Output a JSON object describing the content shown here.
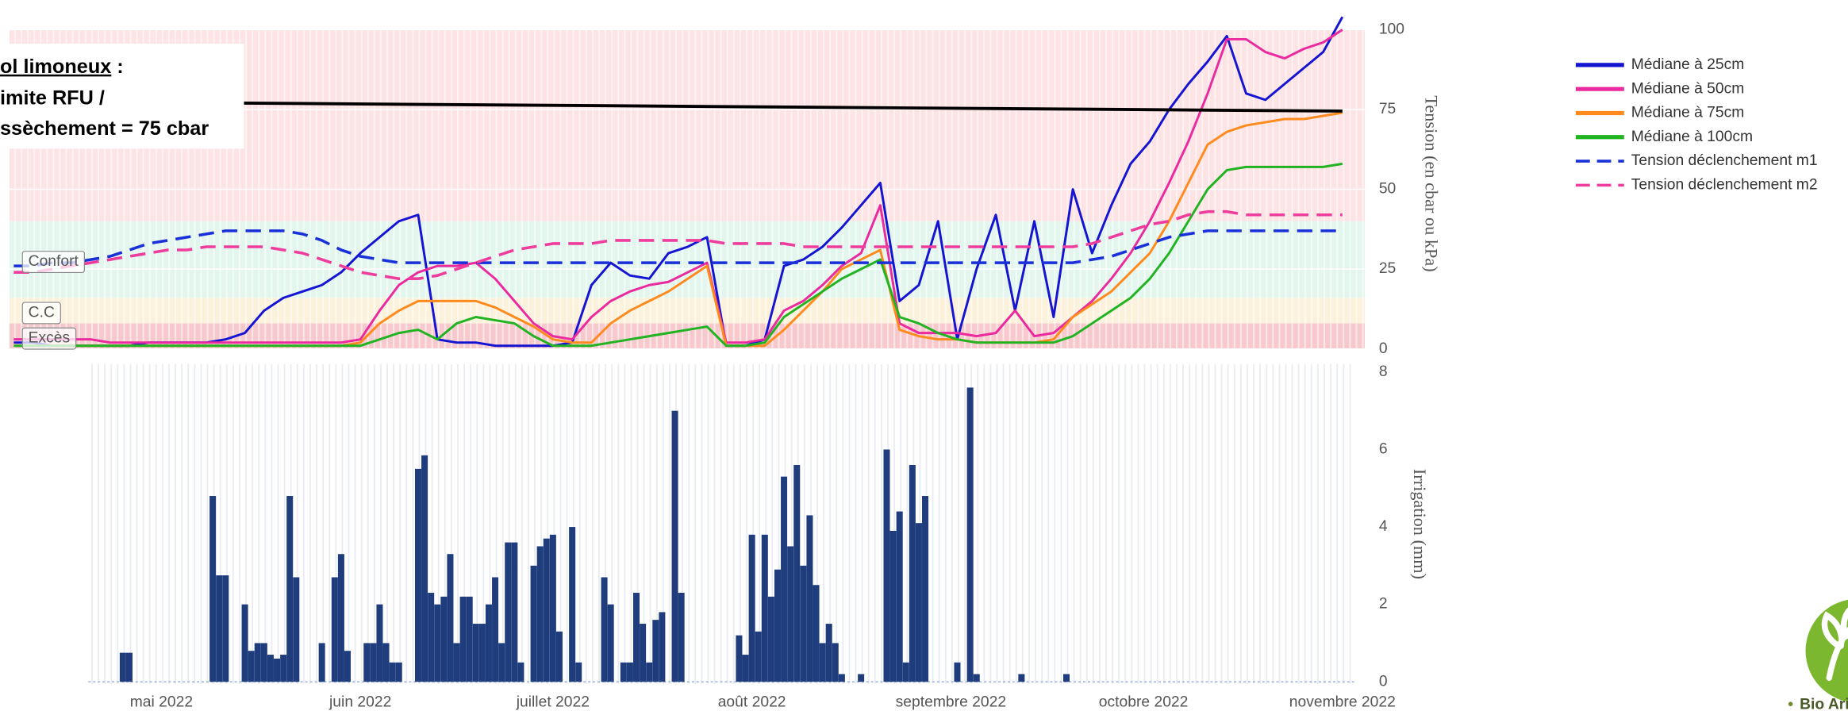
{
  "chart_data": [
    {
      "type": "line",
      "categories": [
        null,
        null,
        null,
        null,
        null,
        null,
        null,
        null,
        null,
        null,
        null,
        null,
        null,
        null,
        null,
        null,
        null,
        null,
        null,
        null,
        null,
        null,
        null,
        null,
        null,
        null,
        null,
        null,
        null,
        null,
        null,
        null,
        null,
        null,
        null,
        null,
        null,
        null,
        null,
        null,
        null,
        null,
        null,
        null,
        null,
        null,
        null,
        null,
        null,
        null,
        null,
        null,
        null,
        null,
        null,
        null,
        null,
        null,
        null,
        null,
        null,
        null,
        null,
        null,
        null,
        null,
        null,
        null,
        null,
        null
      ],
      "y_label": "Tension (en cbar ou kPa)",
      "ylim": [
        -1.5,
        105
      ],
      "yticks": [
        0,
        25,
        50,
        75,
        100
      ],
      "grid": true,
      "bands": [
        {
          "name": "Excès",
          "range": [
            0,
            8
          ],
          "color": "#f7c9cd"
        },
        {
          "name": "C.C",
          "range": [
            8,
            16
          ],
          "color": "#fcf2dc"
        },
        {
          "name": "Confort",
          "range": [
            16,
            40
          ],
          "color": "#e3f6ee"
        },
        {
          "range": [
            40,
            100
          ],
          "color": "#fde3e4"
        }
      ],
      "threshold": {
        "values": [
          77,
          74.5
        ],
        "color": "#000000"
      },
      "series": [
        {
          "name": "Médiane à 25cm",
          "color": "#1414d2",
          "values": [
            2,
            2,
            1,
            1,
            1,
            1,
            1,
            2,
            2,
            2,
            2,
            3,
            5,
            12,
            16,
            18,
            20,
            24,
            30,
            35,
            40,
            42,
            3,
            2,
            2,
            1,
            1,
            1,
            1,
            2,
            20,
            27,
            23,
            22,
            30,
            32,
            35,
            1,
            1,
            3,
            26,
            28,
            32,
            38,
            45,
            52,
            15,
            20,
            40,
            3,
            25,
            42,
            12,
            40,
            10,
            50,
            30,
            45,
            58,
            65,
            75,
            83,
            90,
            98,
            80,
            78,
            83,
            88,
            93,
            104
          ]
        },
        {
          "name": "Médiane à 50cm",
          "color": "#ea2a9e",
          "values": [
            3,
            3,
            3,
            3,
            3,
            2,
            2,
            2,
            2,
            2,
            2,
            2,
            2,
            2,
            2,
            2,
            2,
            2,
            3,
            12,
            20,
            24,
            26,
            26,
            27,
            22,
            15,
            8,
            4,
            3,
            10,
            15,
            18,
            20,
            21,
            24,
            27,
            2,
            2,
            3,
            12,
            15,
            20,
            26,
            30,
            45,
            8,
            5,
            5,
            5,
            4,
            5,
            12,
            4,
            5,
            10,
            15,
            22,
            30,
            40,
            52,
            65,
            80,
            97,
            97,
            93,
            91,
            94,
            96,
            100
          ]
        },
        {
          "name": "Médiane à 75cm",
          "color": "#ff8a1e",
          "values": [
            1,
            1,
            1,
            1,
            1,
            1,
            1,
            1,
            1,
            1,
            1,
            1,
            1,
            1,
            1,
            1,
            1,
            1,
            2,
            8,
            12,
            15,
            15,
            15,
            15,
            13,
            10,
            7,
            3,
            2,
            2,
            8,
            12,
            15,
            18,
            22,
            26,
            1,
            1,
            1,
            6,
            12,
            18,
            25,
            28,
            31,
            6,
            4,
            3,
            3,
            2,
            2,
            2,
            2,
            3,
            10,
            14,
            18,
            24,
            30,
            40,
            52,
            64,
            68,
            70,
            71,
            72,
            72,
            73,
            74
          ]
        },
        {
          "name": "Médiane à 100cm",
          "color": "#21b321",
          "values": [
            1,
            1,
            1,
            1,
            1,
            1,
            1,
            1,
            1,
            1,
            1,
            1,
            1,
            1,
            1,
            1,
            1,
            1,
            1,
            3,
            5,
            6,
            3,
            8,
            10,
            9,
            8,
            4,
            1,
            1,
            1,
            2,
            3,
            4,
            5,
            6,
            7,
            1,
            1,
            2,
            10,
            14,
            18,
            22,
            25,
            28,
            10,
            8,
            5,
            3,
            2,
            2,
            2,
            2,
            2,
            4,
            8,
            12,
            16,
            22,
            30,
            40,
            50,
            56,
            57,
            57,
            57,
            57,
            57,
            58
          ]
        },
        {
          "name": "Tension déclenchement m1",
          "color": "#1a30d8",
          "dash": true,
          "values": [
            26,
            26,
            27,
            27,
            28,
            29,
            31,
            33,
            34,
            35,
            36,
            37,
            37,
            37,
            37,
            36,
            34,
            31,
            29,
            28,
            27,
            27,
            27,
            27,
            27,
            27,
            27,
            27,
            27,
            27,
            27,
            27,
            27,
            27,
            27,
            27,
            27,
            27,
            27,
            27,
            27,
            27,
            27,
            27,
            27,
            27,
            27,
            27,
            27,
            27,
            27,
            27,
            27,
            27,
            27,
            27,
            28,
            29,
            31,
            33,
            35,
            36,
            37,
            37,
            37,
            37,
            37,
            37,
            37,
            37
          ]
        },
        {
          "name": "Tension déclenchement m2",
          "color": "#ee3d9d",
          "dash": true,
          "values": [
            24,
            24,
            25,
            26,
            27,
            28,
            29,
            30,
            31,
            31,
            32,
            32,
            32,
            32,
            31,
            30,
            28,
            26,
            24,
            23,
            22,
            22,
            23,
            25,
            27,
            29,
            31,
            32,
            33,
            33,
            33,
            34,
            34,
            34,
            34,
            34,
            34,
            33,
            33,
            33,
            33,
            32,
            32,
            32,
            32,
            32,
            32,
            32,
            32,
            32,
            32,
            32,
            32,
            32,
            32,
            32,
            33,
            35,
            37,
            39,
            40,
            42,
            43,
            43,
            42,
            42,
            42,
            42,
            42,
            42
          ]
        }
      ]
    },
    {
      "type": "bar",
      "categories": [
        null,
        null,
        null,
        null,
        null,
        null,
        null,
        null,
        null,
        null,
        null,
        null,
        null,
        null,
        null,
        null,
        null,
        null,
        null,
        null,
        null,
        null,
        null,
        "mai 2022",
        null,
        null,
        null,
        null,
        null,
        null,
        null,
        null,
        null,
        null,
        null,
        null,
        null,
        null,
        null,
        null,
        null,
        null,
        null,
        null,
        null,
        null,
        null,
        null,
        null,
        null,
        null,
        null,
        null,
        null,
        "juin 2022",
        null,
        null,
        null,
        null,
        null,
        null,
        null,
        null,
        null,
        null,
        null,
        null,
        null,
        null,
        null,
        null,
        null,
        null,
        null,
        null,
        null,
        null,
        null,
        null,
        null,
        null,
        null,
        null,
        null,
        "juillet 2022",
        null,
        null,
        null,
        null,
        null,
        null,
        null,
        null,
        null,
        null,
        null,
        null,
        null,
        null,
        null,
        null,
        null,
        null,
        null,
        null,
        null,
        null,
        null,
        null,
        null,
        null,
        null,
        null,
        null,
        null,
        "août 2022",
        null,
        null,
        null,
        null,
        null,
        null,
        null,
        null,
        null,
        null,
        null,
        null,
        null,
        null,
        null,
        null,
        null,
        null,
        null,
        null,
        null,
        null,
        null,
        null,
        null,
        null,
        null,
        null,
        null,
        null,
        "septembre 2022",
        null,
        null,
        null,
        null,
        null,
        null,
        null,
        null,
        null,
        null,
        null,
        null,
        null,
        null,
        null,
        null,
        null,
        null,
        null,
        null,
        null,
        null,
        null,
        null,
        null,
        null,
        null,
        null,
        null,
        "octobre 2022",
        null,
        null,
        null,
        null,
        null,
        null,
        null,
        null,
        null,
        null,
        null,
        null,
        null,
        null,
        null,
        null,
        null,
        null,
        null,
        null,
        null,
        null,
        null,
        null,
        null,
        null,
        null,
        null,
        null,
        null,
        "novembre 2022"
      ],
      "values": [
        0,
        0,
        0,
        0,
        0,
        0,
        0,
        0,
        0,
        0,
        0,
        0,
        0,
        0,
        0,
        0,
        0,
        0.75,
        0.75,
        0,
        0,
        0,
        0,
        0,
        0,
        0,
        0,
        0,
        0,
        0,
        0,
        4.8,
        2.75,
        2.75,
        0,
        0,
        2.0,
        0.8,
        1.0,
        1.0,
        0.7,
        0.6,
        0.7,
        4.8,
        2.7,
        0,
        0,
        0,
        1.0,
        0,
        2.7,
        3.3,
        0.8,
        0,
        0,
        1.0,
        1.0,
        2.0,
        1.0,
        0.5,
        0.5,
        0,
        0,
        5.5,
        5.85,
        2.3,
        2.0,
        2.2,
        3.3,
        1.0,
        2.2,
        2.2,
        1.5,
        1.5,
        2.0,
        2.7,
        1.0,
        3.6,
        3.6,
        0.5,
        0,
        3.0,
        3.5,
        3.7,
        3.8,
        1.3,
        0,
        4.0,
        0.5,
        0,
        0,
        0,
        2.7,
        2.0,
        0,
        0.5,
        0.5,
        2.3,
        1.5,
        0.5,
        1.6,
        1.8,
        0,
        7.0,
        2.3,
        0,
        0,
        0,
        0,
        0,
        0,
        0,
        0,
        1.2,
        0.7,
        3.8,
        1.3,
        3.8,
        2.2,
        2.9,
        5.3,
        3.5,
        5.6,
        3.0,
        4.3,
        2.5,
        1.0,
        1.5,
        1.0,
        0.2,
        0,
        0,
        0.2,
        0,
        0,
        0,
        6.0,
        3.9,
        4.4,
        0.5,
        5.6,
        4.1,
        4.8,
        0,
        0,
        0,
        0,
        0.5,
        0,
        7.6,
        0.2,
        0,
        0,
        0,
        0,
        0,
        0,
        0.2,
        0,
        0,
        0,
        0,
        0,
        0,
        0.2,
        0,
        0,
        0,
        0,
        0,
        0,
        0,
        0,
        0,
        0,
        0,
        0,
        0,
        0,
        0,
        0,
        0,
        0,
        0,
        0,
        0,
        0,
        0,
        0,
        0,
        0,
        0,
        0,
        0,
        0,
        0,
        0,
        0,
        0,
        0,
        0,
        0,
        0,
        0,
        0,
        0,
        0,
        0
      ],
      "color": "#1f3d7c",
      "y_label": "Irrigation (mm)",
      "ylim": [
        -0.05,
        8.2
      ],
      "yticks": [
        0,
        2,
        4,
        6,
        8
      ],
      "grid": false
    }
  ],
  "annotation": {
    "lines": [
      "ol limoneux",
      " :",
      "imite RFU /",
      "ssèchement = 75 cbar"
    ]
  },
  "logo": "Bio Ariège"
}
